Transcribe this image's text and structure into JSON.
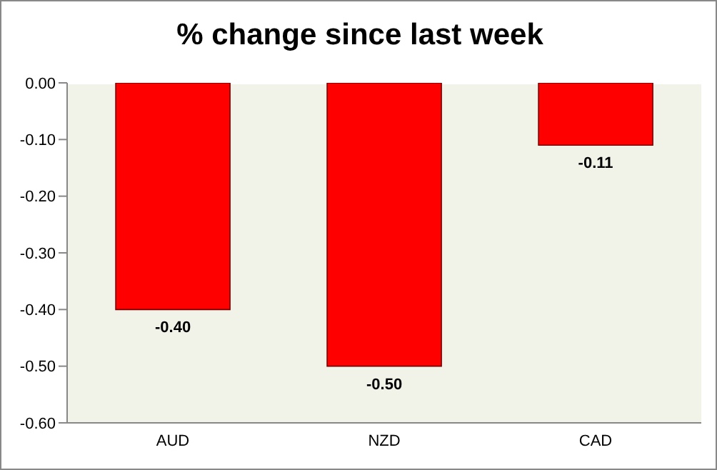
{
  "chart_data": {
    "type": "bar",
    "title": "% change since last week",
    "categories": [
      "AUD",
      "NZD",
      "CAD"
    ],
    "values": [
      -0.4,
      -0.5,
      -0.11
    ],
    "value_labels": [
      "-0.40",
      "-0.50",
      "-0.11"
    ],
    "color": "#ff0000",
    "ylim": [
      -0.6,
      0
    ],
    "yticks": [
      {
        "value": 0,
        "label": "0.00"
      },
      {
        "value": -0.1,
        "label": "-0.10"
      },
      {
        "value": -0.2,
        "label": "-0.20"
      },
      {
        "value": -0.3,
        "label": "-0.30"
      },
      {
        "value": -0.4,
        "label": "-0.40"
      },
      {
        "value": -0.5,
        "label": "-0.50"
      },
      {
        "value": -0.6,
        "label": "-0.60"
      }
    ],
    "grid": false,
    "legend": false
  }
}
